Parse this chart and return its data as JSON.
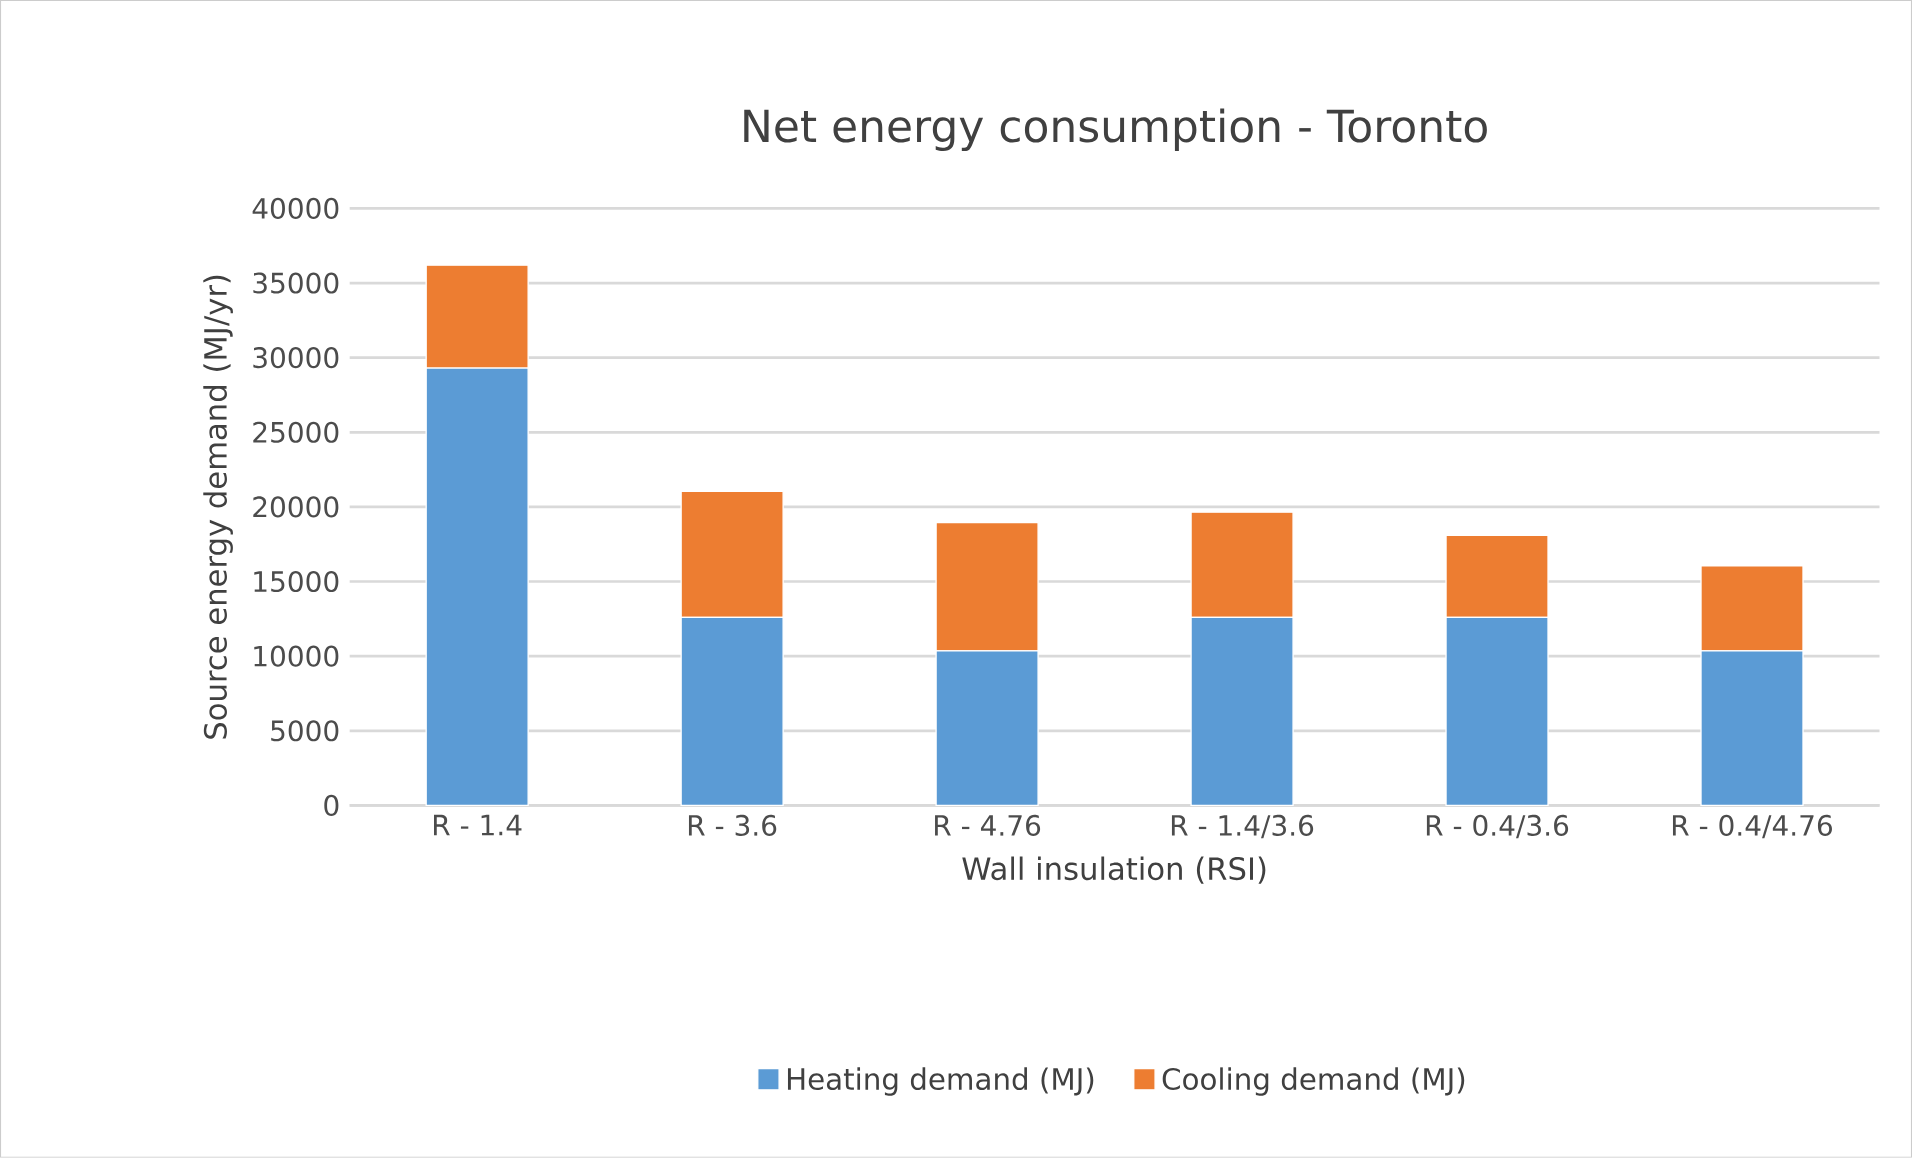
{
  "chart_data": {
    "type": "bar",
    "title": "Net energy consumption - Toronto",
    "xlabel": "Wall insulation (RSI)",
    "ylabel": "Source  energy demand (MJ/yr)",
    "categories": [
      "R - 1.4",
      "R - 3.6",
      "R - 4.76",
      "R - 1.4/3.6",
      "R - 0.4/3.6",
      "R - 0.4/4.76"
    ],
    "series": [
      {
        "name": "Heating demand (MJ)",
        "color": "#5b9bd5",
        "values": [
          29300,
          12600,
          10350,
          12600,
          12600,
          10350
        ]
      },
      {
        "name": "Cooling demand (MJ)",
        "color": "#ed7d31",
        "values": [
          6900,
          8450,
          8600,
          7050,
          5500,
          5700
        ]
      }
    ],
    "stacked": true,
    "ylim": [
      0,
      40000
    ],
    "yticks": [
      0,
      5000,
      10000,
      15000,
      20000,
      25000,
      30000,
      35000,
      40000
    ],
    "grid": "y",
    "legend": "bottom"
  }
}
